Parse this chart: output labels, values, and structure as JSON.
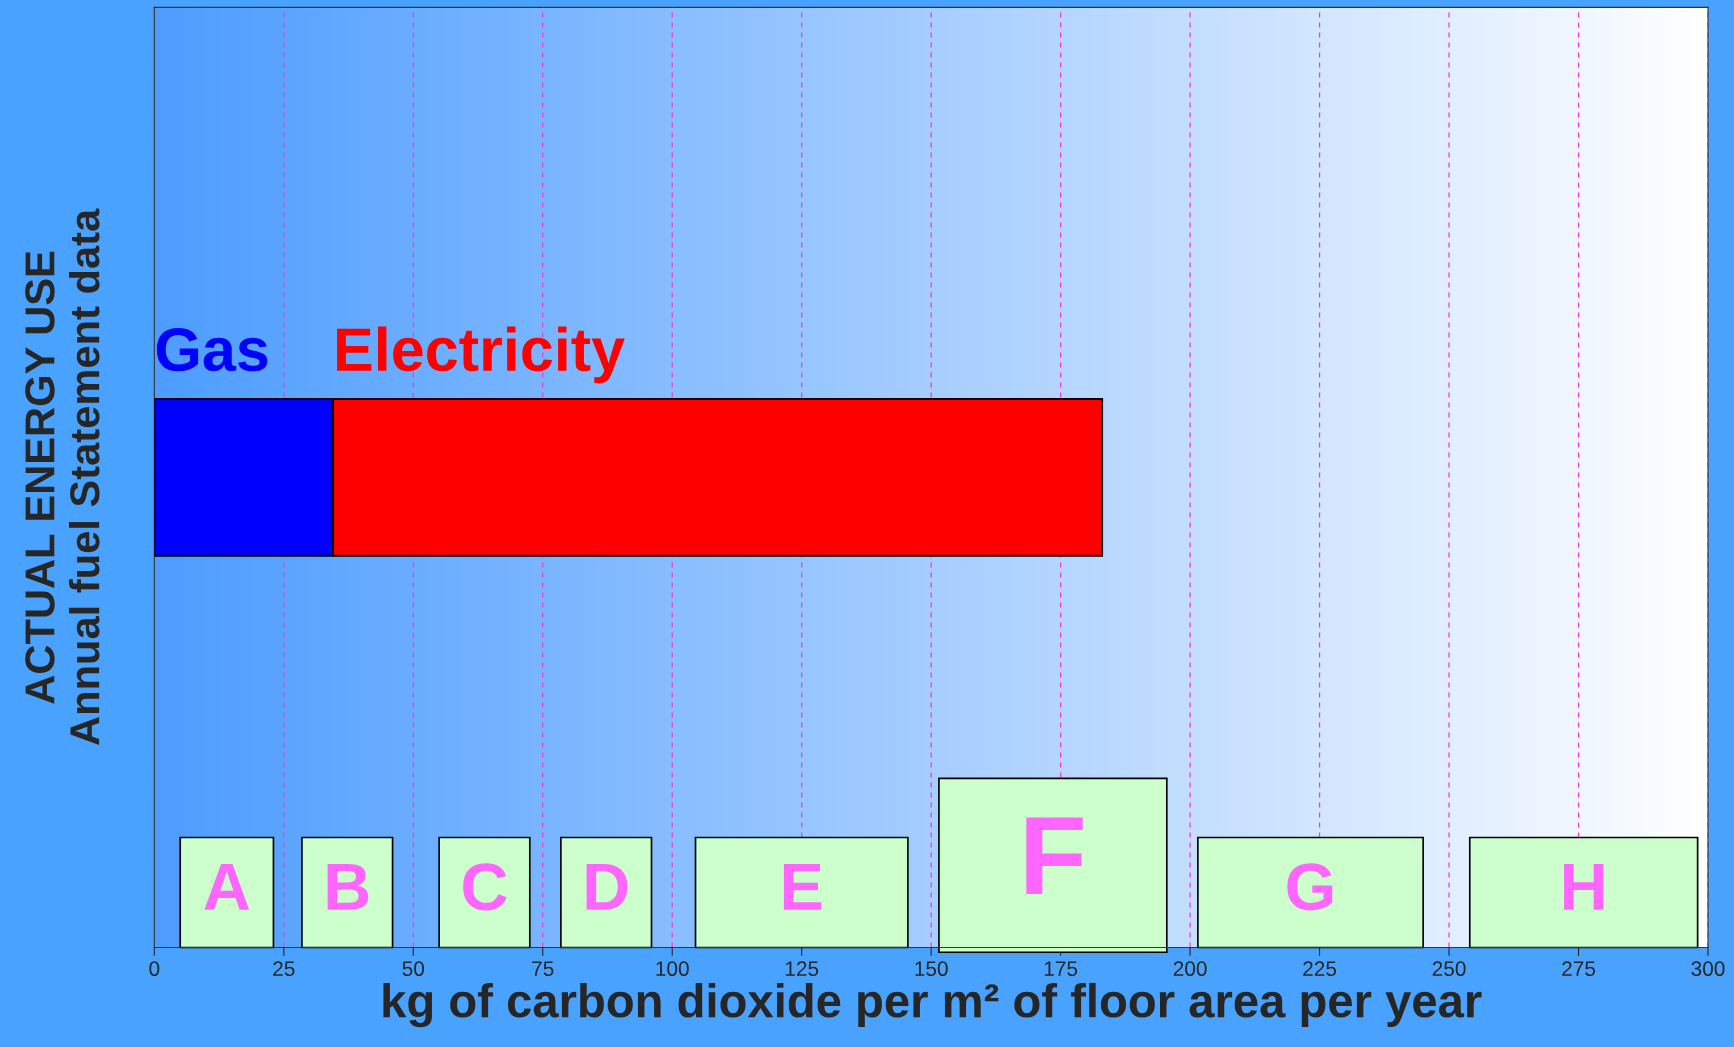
{
  "chart_data": {
    "type": "bar",
    "orientation": "horizontal",
    "stacked": true,
    "xlabel": "kg of carbon dioxide per m² of floor area per year",
    "ylabel": "ACTUAL ENERGY USE\nAnnual fuel Statement data",
    "categories": [
      null
    ],
    "series": [
      {
        "name": "Gas",
        "color": "#0000ff",
        "values": [
          34.5
        ]
      },
      {
        "name": "Electricity",
        "color": "#ff0000",
        "values": [
          148.5
        ]
      }
    ],
    "xlim": [
      0,
      300
    ],
    "xticks": [
      0,
      25,
      50,
      75,
      100,
      125,
      150,
      175,
      200,
      225,
      250,
      275,
      300
    ],
    "grid": "x",
    "legend": false,
    "bands": [
      {
        "axis": "x",
        "from": 5,
        "to": 23,
        "label": "A",
        "color": "#ccffcc"
      },
      {
        "axis": "x",
        "from": 28.5,
        "to": 46,
        "label": "B",
        "color": "#ccffcc"
      },
      {
        "axis": "x",
        "from": 55,
        "to": 72.5,
        "label": "C",
        "color": "#ccffcc"
      },
      {
        "axis": "x",
        "from": 78.5,
        "to": 96,
        "label": "D",
        "color": "#ccffcc"
      },
      {
        "axis": "x",
        "from": 104.5,
        "to": 145.5,
        "label": "E",
        "color": "#ccffcc"
      },
      {
        "axis": "x",
        "from": 151.5,
        "to": 195.5,
        "label": "F",
        "color": "#ccffcc"
      },
      {
        "axis": "x",
        "from": 201.5,
        "to": 245,
        "label": "G",
        "color": "#ccffcc"
      },
      {
        "axis": "x",
        "from": 254,
        "to": 298,
        "label": "H",
        "color": "#ccffcc"
      }
    ]
  }
}
